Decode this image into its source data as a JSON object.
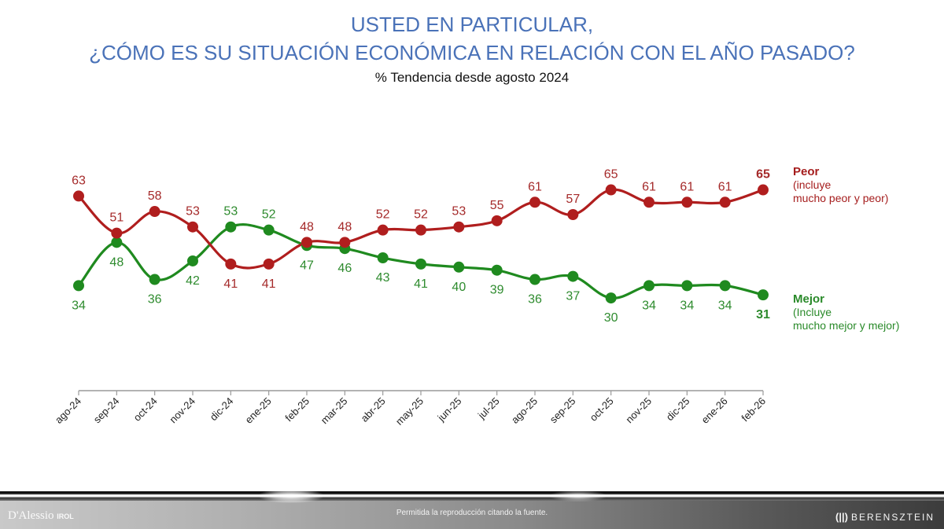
{
  "chart_data": {
    "type": "line",
    "title": "USTED EN PARTICULAR,",
    "title_line2": "¿CÓMO ES SU SITUACIÓN ECONÓMICA EN RELACIÓN CON EL AÑO PASADO?",
    "subtitle": "%  Tendencia desde agosto 2024",
    "xlabel": "",
    "ylabel": "",
    "ylim": [
      0,
      100
    ],
    "grid": false,
    "legend_placement": "right",
    "categories": [
      "ago-24",
      "sep-24",
      "oct-24",
      "nov-24",
      "dic-24",
      "ene-25",
      "feb-25",
      "mar-25",
      "abr-25",
      "may-25",
      "jun-25",
      "jul-25",
      "ago-25",
      "sep-25",
      "oct-25",
      "nov-25",
      "dic-25",
      "ene-26",
      "feb-26"
    ],
    "series": [
      {
        "name": "Peor",
        "legend_note_line1": "(incluye",
        "legend_note_line2": "mucho peor y peor)",
        "color": "#b01e1e",
        "label_color": "#a52a2a",
        "values": [
          63,
          51,
          58,
          53,
          41,
          41,
          48,
          48,
          52,
          52,
          53,
          55,
          61,
          57,
          65,
          61,
          61,
          61,
          65
        ],
        "label_pos": [
          "above",
          "above",
          "above",
          "above",
          "below",
          "below",
          "above",
          "above",
          "above",
          "above",
          "above",
          "above",
          "above",
          "above",
          "above",
          "above",
          "above",
          "above",
          "above"
        ]
      },
      {
        "name": "Mejor",
        "legend_note_line1": "(Incluye",
        "legend_note_line2": "mucho mejor y mejor)",
        "color": "#1f8a1f",
        "label_color": "#2e8b2e",
        "values": [
          34,
          48,
          36,
          42,
          53,
          52,
          47,
          46,
          43,
          41,
          40,
          39,
          36,
          37,
          30,
          34,
          34,
          34,
          31
        ],
        "label_pos": [
          "below",
          "below",
          "below",
          "below",
          "above",
          "above",
          "below",
          "below",
          "below",
          "below",
          "below",
          "below",
          "below",
          "below",
          "below",
          "below",
          "below",
          "below",
          "below"
        ]
      }
    ]
  },
  "footer": {
    "note": "Permitida la reproducción citando la fuente.",
    "logo_left": "D'Alessio",
    "logo_left_sub": "IROL",
    "logo_right_mark": "(||)",
    "logo_right": "BERENSZTEIN"
  }
}
